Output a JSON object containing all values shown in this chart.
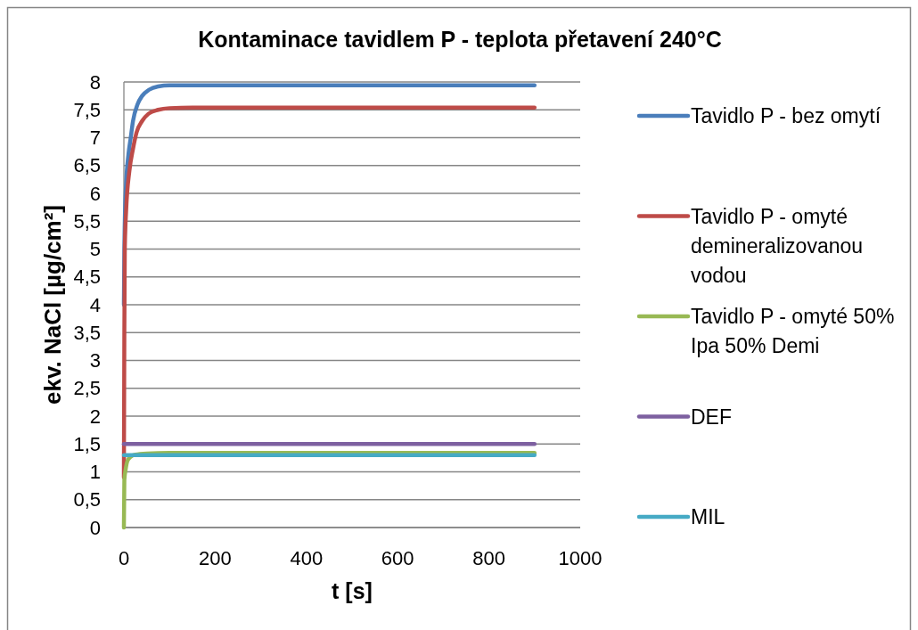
{
  "chart_data": {
    "type": "line",
    "title": "Kontaminace tavidlem P - teplota přetavení 240°C",
    "xlabel": "t [s]",
    "ylabel": "ekv. NaCl [µg/cm²]",
    "xlim": [
      0,
      1000
    ],
    "xticks": [
      0,
      200,
      400,
      600,
      800,
      1000
    ],
    "ylim": [
      0,
      8
    ],
    "yticks": [
      0,
      {
        "value": 0.5,
        "label": "0,5"
      },
      1,
      {
        "value": 1.5,
        "label": "1,5"
      },
      2,
      {
        "value": 2.5,
        "label": "2,5"
      },
      3,
      {
        "value": 3.5,
        "label": "3,5"
      },
      4,
      {
        "value": 4.5,
        "label": "4,5"
      },
      5,
      {
        "value": 5.5,
        "label": "5,5"
      },
      6,
      {
        "value": 6.5,
        "label": "6,5"
      },
      7,
      {
        "value": 7.5,
        "label": "7,5"
      },
      8
    ],
    "grid": "y",
    "legend": "right",
    "marker": "none",
    "line_style": "solid",
    "series": [
      {
        "name": "Tavidlo P - bez omytí",
        "color": "#4a7ebb",
        "x": [
          0,
          1,
          2,
          5,
          10,
          15,
          20,
          30,
          40,
          55,
          75,
          100,
          150,
          900
        ],
        "values": [
          4.0,
          5.0,
          5.5,
          6.2,
          6.7,
          7.0,
          7.3,
          7.6,
          7.75,
          7.86,
          7.92,
          7.94,
          7.94,
          7.94
        ]
      },
      {
        "name": "Tavidlo P - omyté demineralizovanou vodou",
        "color": "#be4b48",
        "x": [
          0,
          1,
          2,
          5,
          12,
          20,
          28,
          40,
          54,
          75,
          100,
          150,
          900
        ],
        "values": [
          0.9,
          3.5,
          5.0,
          5.7,
          6.4,
          6.8,
          7.1,
          7.3,
          7.43,
          7.5,
          7.53,
          7.54,
          7.54
        ]
      },
      {
        "name": "Tavidlo P - omyté 50% Ipa 50% Demi",
        "color": "#98b954",
        "x": [
          0,
          1,
          4,
          8,
          15,
          25,
          50,
          100,
          900
        ],
        "values": [
          0,
          0.85,
          1.05,
          1.2,
          1.27,
          1.31,
          1.33,
          1.34,
          1.34
        ]
      },
      {
        "name": "DEF",
        "color": "#7d60a0",
        "x": [
          0,
          900
        ],
        "values": [
          1.5,
          1.5
        ]
      },
      {
        "name": "MIL",
        "color": "#46aac5",
        "x": [
          0,
          900
        ],
        "values": [
          1.3,
          1.3
        ]
      }
    ]
  }
}
